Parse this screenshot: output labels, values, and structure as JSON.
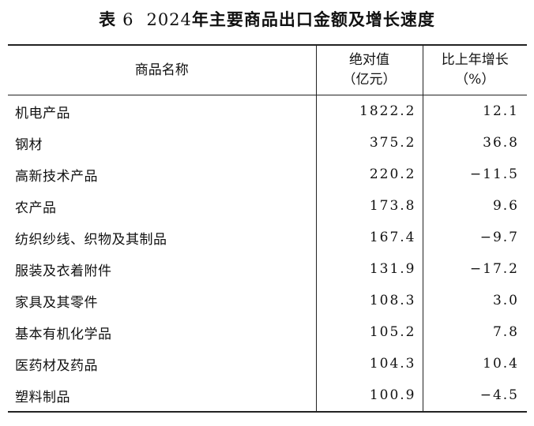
{
  "title": {
    "prefix": "表",
    "number": "6",
    "year": "2024",
    "text": "年主要商品出口金额及增长速度"
  },
  "headers": {
    "name": "商品名称",
    "value_line1": "绝对值",
    "value_line2": "（亿元）",
    "growth_line1": "比上年增长",
    "growth_line2": "（%）"
  },
  "rows": [
    {
      "name": "机电产品",
      "value": "1822.2",
      "growth": "12.1"
    },
    {
      "name": "钢材",
      "value": "375.2",
      "growth": "36.8"
    },
    {
      "name": "高新技术产品",
      "value": "220.2",
      "growth": "−11.5"
    },
    {
      "name": "农产品",
      "value": "173.8",
      "growth": "9.6"
    },
    {
      "name": "纺织纱线、织物及其制品",
      "value": "167.4",
      "growth": "−9.7"
    },
    {
      "name": "服装及衣着附件",
      "value": "131.9",
      "growth": "−17.2"
    },
    {
      "name": "家具及其零件",
      "value": "108.3",
      "growth": "3.0"
    },
    {
      "name": "基本有机化学品",
      "value": "105.2",
      "growth": "7.8"
    },
    {
      "name": "医药材及药品",
      "value": "104.3",
      "growth": "10.4"
    },
    {
      "name": "塑料制品",
      "value": "100.9",
      "growth": "−4.5"
    }
  ]
}
